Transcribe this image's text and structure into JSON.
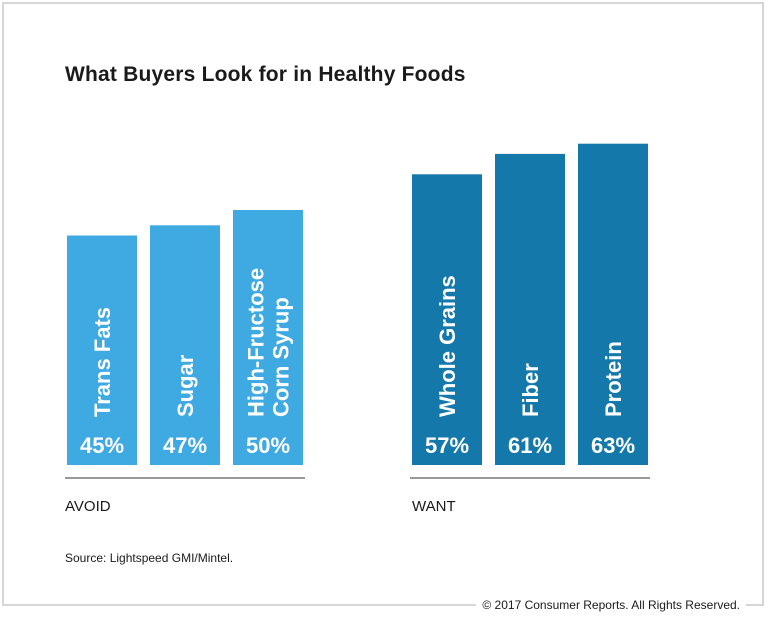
{
  "chart_data": {
    "type": "bar",
    "title": "What Buyers Look for in Healthy Foods",
    "groups": [
      {
        "name": "AVOID",
        "color": "#3fa9e1",
        "bars": [
          {
            "label": [
              "Trans Fats"
            ],
            "value": 45,
            "value_label": "45%"
          },
          {
            "label": [
              "Sugar"
            ],
            "value": 47,
            "value_label": "47%"
          },
          {
            "label": [
              "High-Fructose",
              "Corn Syrup"
            ],
            "value": 50,
            "value_label": "50%"
          }
        ]
      },
      {
        "name": "WANT",
        "color": "#1578aa",
        "bars": [
          {
            "label": [
              "Whole Grains"
            ],
            "value": 57,
            "value_label": "57%"
          },
          {
            "label": [
              "Fiber"
            ],
            "value": 61,
            "value_label": "61%"
          },
          {
            "label": [
              "Protein"
            ],
            "value": 63,
            "value_label": "63%"
          }
        ]
      }
    ],
    "source": "Source: Lightspeed GMI/Mintel.",
    "grid": false,
    "legend": "none"
  },
  "footer": {
    "copyright": "© 2017 Consumer Reports. All Rights Reserved."
  }
}
